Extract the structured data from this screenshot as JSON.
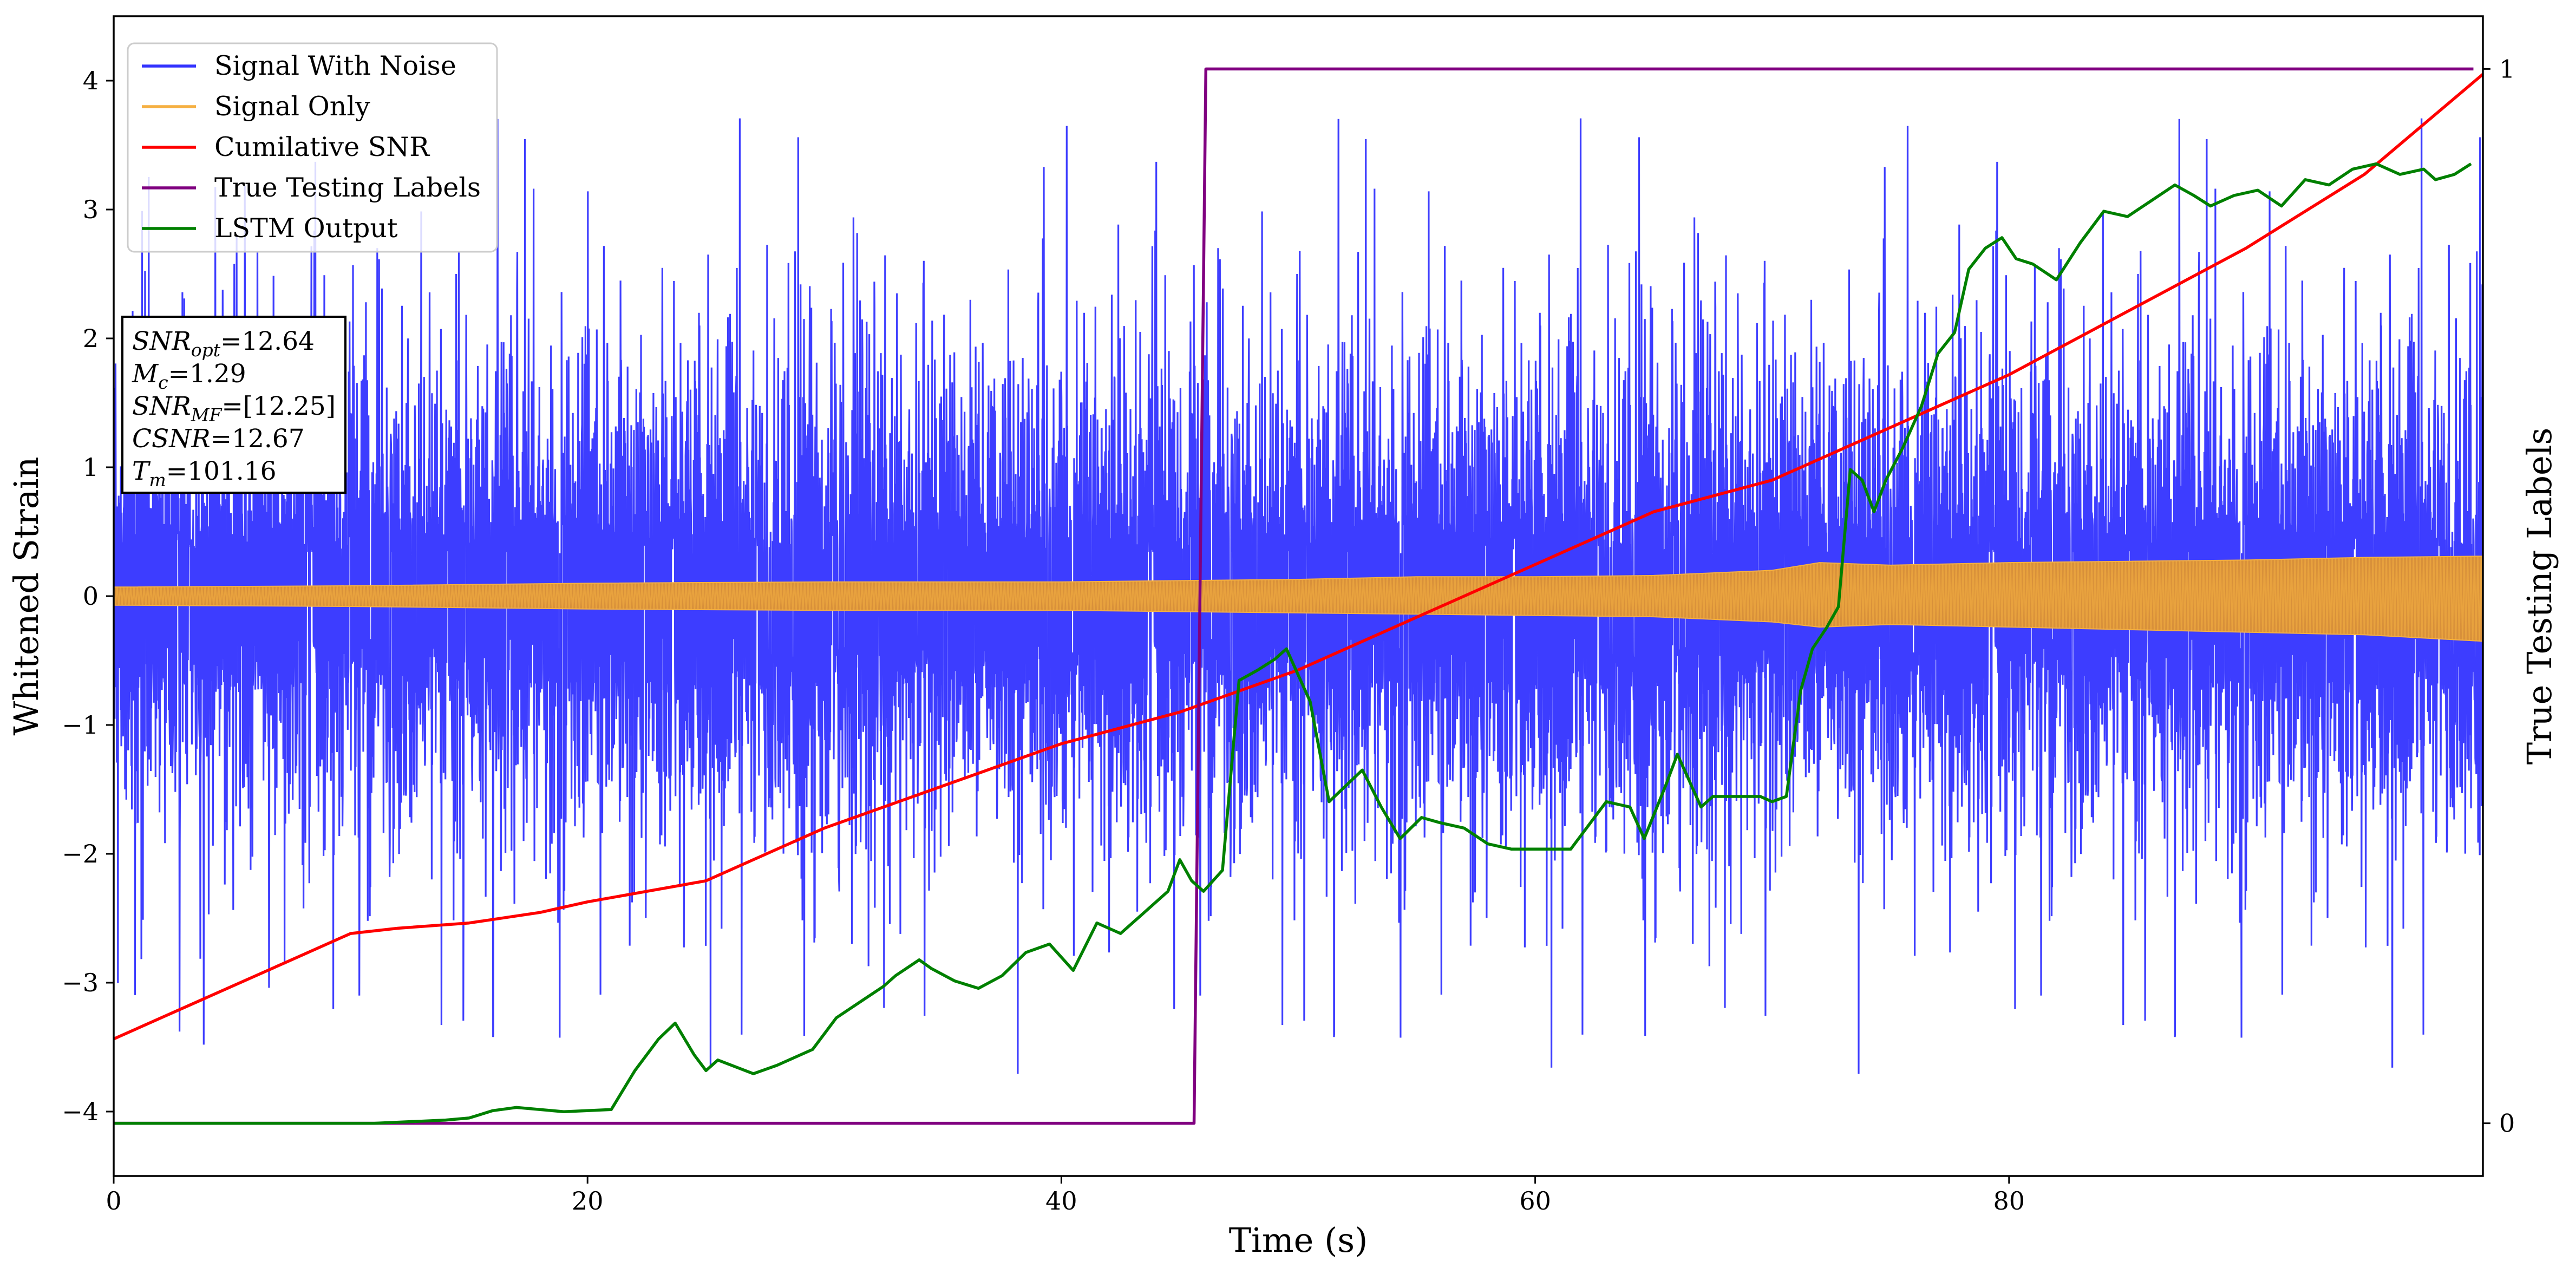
{
  "chart_data": {
    "type": "line",
    "xlabel": "Time (s)",
    "ylabel": "Whitened Strain",
    "y2label": "True Testing Labels",
    "xlim": [
      0,
      100
    ],
    "ylim": [
      -4.5,
      4.5
    ],
    "y2lim": [
      -0.05,
      1.05
    ],
    "xticks": [
      0,
      20,
      40,
      60,
      80
    ],
    "yticks": [
      -4,
      -3,
      -2,
      -1,
      0,
      1,
      2,
      3,
      4
    ],
    "y2ticks": [
      0,
      1
    ],
    "grid": false,
    "legend_position": "top-left",
    "series": [
      {
        "name": "Signal With Noise",
        "color": "#3333ff",
        "axis": "left",
        "kind": "noise",
        "noise_sigma": 1.0,
        "noise_peak_range": [
          -3.9,
          4.1
        ],
        "noise_gap_halfwidth": 0.08,
        "noise_gap_x_end": 100
      },
      {
        "name": "Signal Only",
        "color": "#f5b042",
        "axis": "left",
        "kind": "band",
        "x": [
          0,
          10,
          20,
          30,
          40,
          45,
          50,
          55,
          60,
          65,
          70,
          72,
          75,
          80,
          85,
          90,
          95,
          100
        ],
        "upper": [
          0.07,
          0.08,
          0.1,
          0.11,
          0.11,
          0.12,
          0.13,
          0.15,
          0.15,
          0.16,
          0.2,
          0.26,
          0.24,
          0.26,
          0.27,
          0.28,
          0.3,
          0.31
        ],
        "lower": [
          -0.07,
          -0.08,
          -0.1,
          -0.11,
          -0.11,
          -0.12,
          -0.13,
          -0.14,
          -0.15,
          -0.16,
          -0.2,
          -0.24,
          -0.22,
          -0.24,
          -0.26,
          -0.28,
          -0.3,
          -0.35
        ]
      },
      {
        "name": "Cumilative SNR",
        "color": "#ff0000",
        "axis": "right",
        "x": [
          0,
          2,
          5,
          8,
          10,
          12,
          15,
          18,
          20,
          25,
          28,
          30,
          35,
          40,
          45,
          50,
          55,
          60,
          65,
          70,
          72,
          75,
          80,
          85,
          90,
          95,
          100
        ],
        "y": [
          0.08,
          0.1,
          0.13,
          0.16,
          0.18,
          0.185,
          0.19,
          0.2,
          0.21,
          0.23,
          0.26,
          0.28,
          0.32,
          0.36,
          0.39,
          0.43,
          0.48,
          0.53,
          0.58,
          0.61,
          0.63,
          0.66,
          0.71,
          0.77,
          0.83,
          0.9,
          0.995
        ]
      },
      {
        "name": "True Testing Labels",
        "color": "#800080",
        "axis": "right",
        "x": [
          0,
          45.6,
          46.1,
          99.6
        ],
        "y": [
          0,
          0,
          1,
          1
        ]
      },
      {
        "name": "LSTM Output",
        "color": "#008000",
        "axis": "right",
        "x": [
          0,
          11,
          14,
          15,
          16,
          17,
          19,
          21,
          22,
          23,
          23.7,
          24.5,
          25,
          25.5,
          27,
          28,
          29.5,
          30.5,
          31.5,
          32.5,
          33,
          34,
          34.5,
          35.5,
          36.5,
          37.5,
          38.5,
          39.5,
          40.5,
          41.5,
          42.5,
          43.5,
          44.5,
          45,
          45.5,
          46,
          46.8,
          47.5,
          48.3,
          49,
          49.5,
          50.5,
          51.3,
          52,
          52.7,
          53.5,
          54.3,
          55.2,
          56,
          57,
          58,
          59,
          60.5,
          61.5,
          62,
          63,
          64,
          64.6,
          65.5,
          66,
          66.4,
          67,
          67.5,
          68.5,
          69.5,
          70,
          70.6,
          71.2,
          71.7,
          72.3,
          72.8,
          73.3,
          73.8,
          74.3,
          74.8,
          75.5,
          76.3,
          77,
          77.7,
          78.3,
          79,
          79.7,
          80.3,
          81,
          82,
          83,
          84,
          85,
          86,
          87,
          87.8,
          88.5,
          89.5,
          90.5,
          91.5,
          92.5,
          93.5,
          94.5,
          95.5,
          96.5,
          97.5,
          98,
          98.8,
          99.5
        ],
        "y": [
          0,
          0,
          0.003,
          0.005,
          0.012,
          0.015,
          0.011,
          0.013,
          0.05,
          0.08,
          0.095,
          0.065,
          0.05,
          0.06,
          0.047,
          0.055,
          0.07,
          0.1,
          0.115,
          0.13,
          0.14,
          0.155,
          0.147,
          0.135,
          0.128,
          0.14,
          0.162,
          0.17,
          0.145,
          0.19,
          0.18,
          0.2,
          0.22,
          0.25,
          0.23,
          0.22,
          0.24,
          0.42,
          0.43,
          0.44,
          0.45,
          0.4,
          0.305,
          0.32,
          0.335,
          0.3,
          0.27,
          0.29,
          0.285,
          0.28,
          0.265,
          0.26,
          0.26,
          0.26,
          0.275,
          0.305,
          0.3,
          0.27,
          0.32,
          0.35,
          0.33,
          0.3,
          0.31,
          0.31,
          0.31,
          0.305,
          0.31,
          0.41,
          0.45,
          0.47,
          0.49,
          0.62,
          0.61,
          0.58,
          0.61,
          0.64,
          0.68,
          0.73,
          0.75,
          0.81,
          0.83,
          0.84,
          0.82,
          0.815,
          0.8,
          0.835,
          0.865,
          0.86,
          0.875,
          0.89,
          0.88,
          0.87,
          0.88,
          0.885,
          0.87,
          0.895,
          0.89,
          0.905,
          0.91,
          0.9,
          0.905,
          0.895,
          0.9,
          0.91
        ]
      }
    ],
    "annotation": {
      "lines": [
        {
          "base": "SNR",
          "sub": "opt",
          "value": "=12.64"
        },
        {
          "base": "M",
          "sub": "c",
          "value": "=1.29"
        },
        {
          "base": "SNR",
          "sub": "MF",
          "value": "=[12.25]"
        },
        {
          "base": "CSNR",
          "sub": "",
          "value": "=12.67"
        },
        {
          "base": "T",
          "sub": "m",
          "value": "=101.16"
        }
      ]
    }
  }
}
